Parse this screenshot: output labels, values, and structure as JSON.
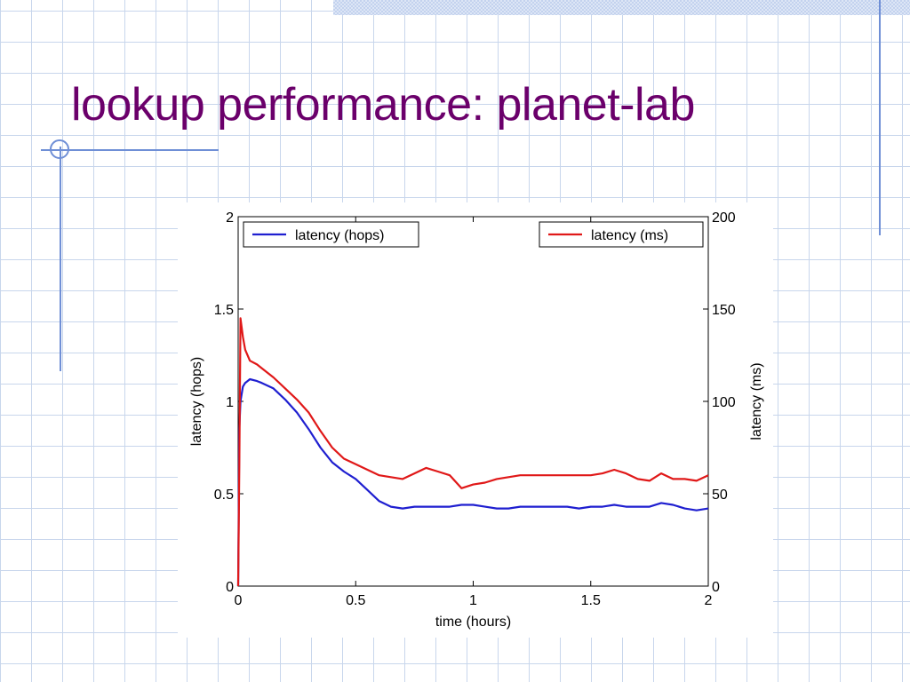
{
  "slide": {
    "title": "lookup performance: planet-lab"
  },
  "chart_data": {
    "type": "line",
    "title": "",
    "xlabel": "time (hours)",
    "ylabel_left": "latency (hops)",
    "ylabel_right": "latency (ms)",
    "xlim": [
      0,
      2
    ],
    "ylim_left": [
      0,
      2
    ],
    "ylim_right": [
      0,
      200
    ],
    "xticks": [
      "0",
      "0.5",
      "1",
      "1.5",
      "2"
    ],
    "yticks_left": [
      "0",
      "0.5",
      "1",
      "1.5",
      "2"
    ],
    "yticks_right": [
      "0",
      "50",
      "100",
      "150",
      "200"
    ],
    "grid": false,
    "legend": [
      {
        "label": "latency (hops)",
        "position": "top-left",
        "color": "#1f1fd0"
      },
      {
        "label": "latency (ms)",
        "position": "top-right",
        "color": "#e01818"
      }
    ],
    "series": [
      {
        "name": "latency (hops)",
        "axis": "left",
        "color": "#1f1fd0",
        "x": [
          0,
          0.005,
          0.01,
          0.02,
          0.03,
          0.04,
          0.05,
          0.08,
          0.1,
          0.15,
          0.2,
          0.25,
          0.3,
          0.35,
          0.4,
          0.45,
          0.5,
          0.55,
          0.6,
          0.65,
          0.7,
          0.75,
          0.8,
          0.85,
          0.9,
          0.95,
          1.0,
          1.05,
          1.1,
          1.15,
          1.2,
          1.25,
          1.3,
          1.35,
          1.4,
          1.45,
          1.5,
          1.55,
          1.6,
          1.65,
          1.7,
          1.75,
          1.8,
          1.85,
          1.9,
          1.95,
          2.0
        ],
        "y": [
          0.0,
          0.85,
          1.0,
          1.08,
          1.1,
          1.11,
          1.12,
          1.11,
          1.1,
          1.07,
          1.01,
          0.94,
          0.85,
          0.75,
          0.67,
          0.62,
          0.58,
          0.52,
          0.46,
          0.43,
          0.42,
          0.43,
          0.43,
          0.43,
          0.43,
          0.44,
          0.44,
          0.43,
          0.42,
          0.42,
          0.43,
          0.43,
          0.43,
          0.43,
          0.43,
          0.42,
          0.43,
          0.43,
          0.44,
          0.43,
          0.43,
          0.43,
          0.45,
          0.44,
          0.42,
          0.41,
          0.42
        ]
      },
      {
        "name": "latency (ms)",
        "axis": "right",
        "color": "#e01818",
        "x": [
          0,
          0.005,
          0.01,
          0.02,
          0.03,
          0.05,
          0.08,
          0.1,
          0.15,
          0.2,
          0.25,
          0.3,
          0.35,
          0.4,
          0.45,
          0.5,
          0.55,
          0.6,
          0.65,
          0.7,
          0.75,
          0.8,
          0.85,
          0.9,
          0.95,
          1.0,
          1.05,
          1.1,
          1.15,
          1.2,
          1.25,
          1.3,
          1.35,
          1.4,
          1.45,
          1.5,
          1.55,
          1.6,
          1.65,
          1.7,
          1.75,
          1.8,
          1.85,
          1.9,
          1.95,
          2.0
        ],
        "y": [
          0,
          65,
          145,
          135,
          128,
          122,
          120,
          118,
          113,
          107,
          101,
          94,
          84,
          75,
          69,
          66,
          63,
          60,
          59,
          58,
          61,
          64,
          62,
          60,
          53,
          55,
          56,
          58,
          59,
          60,
          60,
          60,
          60,
          60,
          60,
          60,
          61,
          63,
          61,
          58,
          57,
          61,
          58,
          58,
          57,
          60
        ]
      }
    ]
  }
}
